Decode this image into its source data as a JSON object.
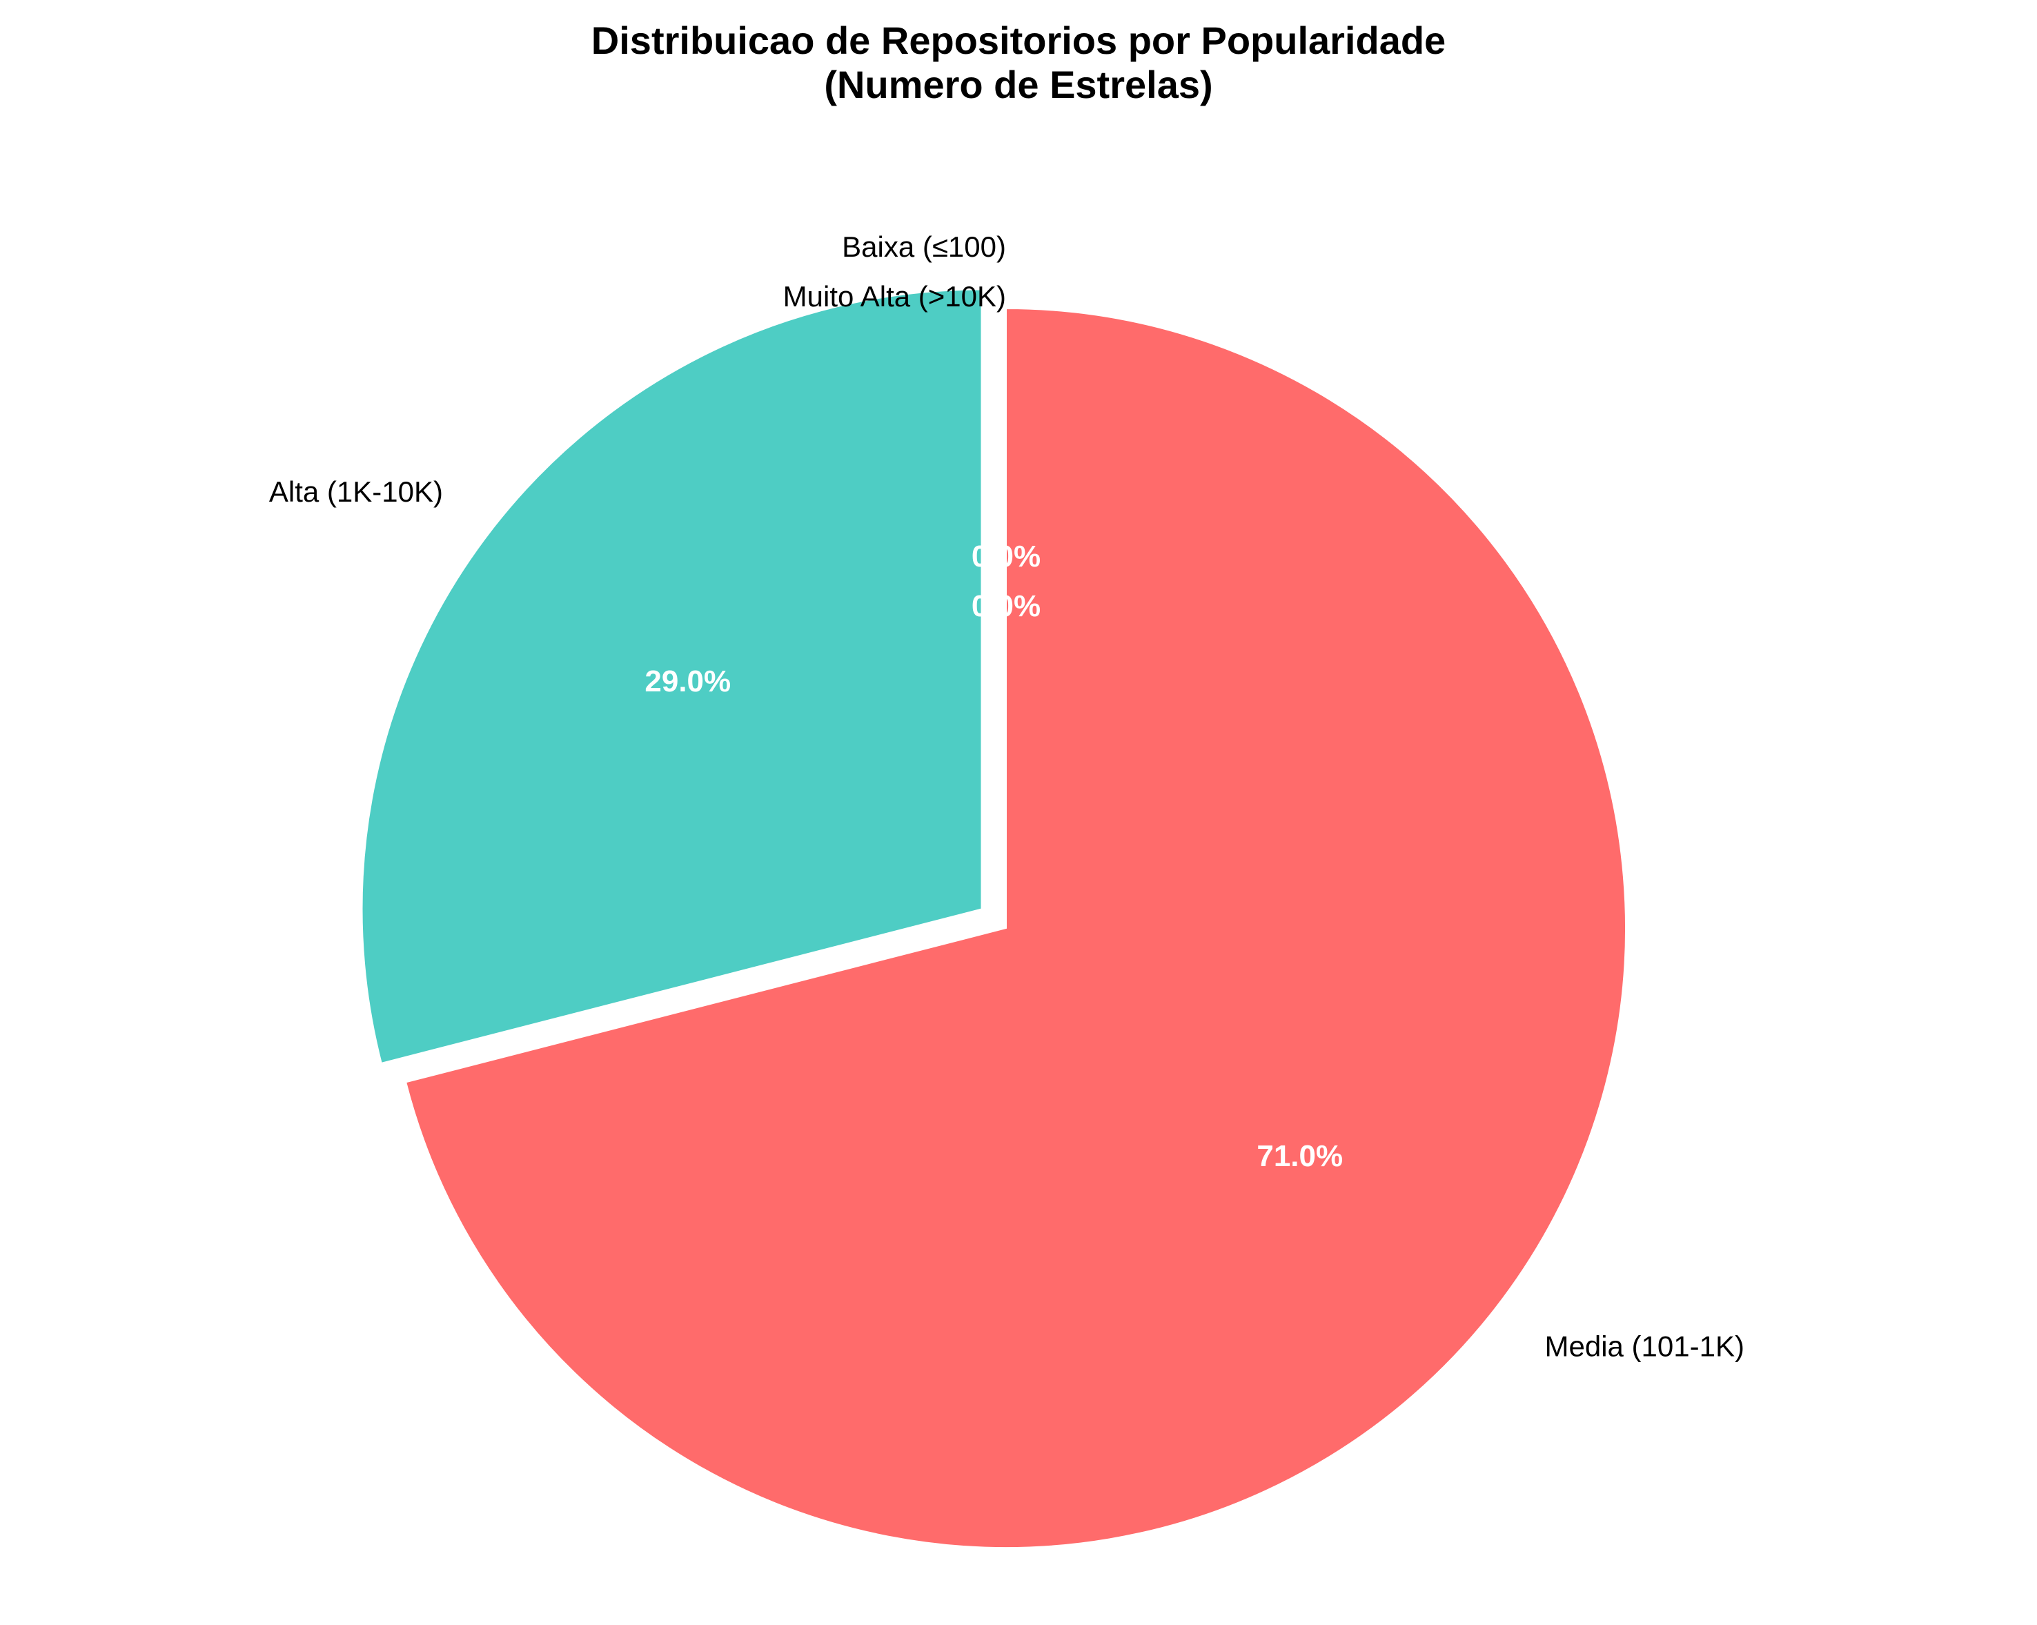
{
  "chart_data": {
    "type": "pie",
    "title_lines": [
      "Distribuicao de Repositorios por Popularidade",
      "(Numero de Estrelas)"
    ],
    "start_angle_deg": 90,
    "direction": "clockwise",
    "slices": [
      {
        "label": "Baixa (≤100)",
        "value": 0.0,
        "pct_label": "0.0%",
        "color": "#45B7D1",
        "explode": 0
      },
      {
        "label": "Media (101-1K)",
        "value": 71.0,
        "pct_label": "71.0%",
        "color": "#FF6B6B",
        "explode": 0
      },
      {
        "label": "Alta (1K-10K)",
        "value": 29.0,
        "pct_label": "29.0%",
        "color": "#4ECDC4",
        "explode": 0.05
      },
      {
        "label": "Muito Alta (>10K)",
        "value": 0.0,
        "pct_label": "0.0%",
        "color": "#96CEB4",
        "explode": 0
      }
    ]
  }
}
